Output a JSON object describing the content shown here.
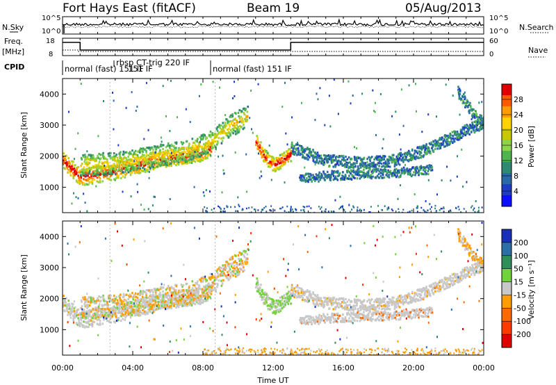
{
  "header": {
    "radar": "Fort Hays East (fitACF)",
    "beam": "Beam 19",
    "date": "05/Aug/2013"
  },
  "left_labels": {
    "nsky": "N.Sky",
    "freq": "Freq.",
    "freq_unit": "[MHz]",
    "cpid": "CPID"
  },
  "right_labels": {
    "nsearch": "N.Search",
    "nave": "Nave"
  },
  "noise_panel": {
    "left_ticks": [
      "10^5",
      "10^0"
    ],
    "right_ticks": [
      "10^5",
      "10^0"
    ]
  },
  "freq_panel": {
    "left_ticks": [
      "18",
      "8"
    ],
    "right_ticks": [
      "60",
      "0"
    ]
  },
  "cpid": {
    "segments": [
      {
        "label": "normal (fast) 151 IF",
        "start_hr": 0.0
      },
      {
        "label": "rbsp CT-trig 220 IF",
        "start_hr": 3.7
      },
      {
        "label": "151 IF",
        "start_hr": 3.7
      },
      {
        "label": "normal (fast) 151 IF",
        "start_hr": 8.7
      }
    ]
  },
  "power_colorbar": {
    "label": "Power [dB]",
    "ticks": [
      "28",
      "24",
      "20",
      "16",
      "12",
      "8",
      "4"
    ],
    "colors": [
      "#e10000",
      "#ff5a00",
      "#ff9c00",
      "#ffd200",
      "#c8c800",
      "#8fd24b",
      "#4fb34f",
      "#2e8a73",
      "#2a6aa6",
      "#1f3cc4",
      "#0d0dff"
    ]
  },
  "velocity_colorbar": {
    "label": "Velocity [m s⁻¹]",
    "ticks": [
      "200",
      "100",
      "50",
      "15",
      "-15",
      "-50",
      "-100",
      "-200"
    ],
    "colors": [
      "#1a2fb8",
      "#2c6fa6",
      "#2f8f5a",
      "#72d23b",
      "#c8c8c8",
      "#ff9d00",
      "#ff6a00",
      "#ff3a00",
      "#e00000"
    ]
  },
  "chart_data": [
    {
      "type": "heatmap",
      "title": "",
      "ylabel": "Slant Range [km]",
      "yticks": [
        "4000",
        "3000",
        "2000",
        "1000"
      ],
      "ylim": [
        180,
        4500
      ],
      "xlim": [
        0,
        24
      ],
      "xticks": [
        "00:00",
        "04:00",
        "08:00",
        "12:00",
        "16:00",
        "20:00",
        "00:00"
      ],
      "xlabel": "Time UT",
      "quantity": "Power [dB]",
      "features": [
        {
          "name": "ground scatter band",
          "x": [
            0,
            1,
            2,
            3,
            4,
            5,
            6,
            7,
            8,
            8.5
          ],
          "y": [
            1900,
            1350,
            1450,
            1550,
            1700,
            1850,
            1950,
            2050,
            2150,
            2350
          ]
        },
        {
          "name": "upper ionospheric echoes",
          "x": [
            1,
            3,
            5,
            7,
            8.5,
            9.5,
            10.5
          ],
          "y": [
            1750,
            1800,
            2000,
            2200,
            2500,
            3000,
            3300
          ]
        },
        {
          "name": "post-noon arc",
          "x": [
            11,
            11.5,
            12,
            12.5,
            13
          ],
          "y": [
            2500,
            2000,
            1750,
            1900,
            2100
          ]
        },
        {
          "name": "evening arc upper",
          "x": [
            13,
            15,
            17,
            19,
            21,
            23,
            24
          ],
          "y": [
            2300,
            1900,
            1800,
            1900,
            2300,
            2900,
            3100
          ]
        },
        {
          "name": "evening arc lower",
          "x": [
            13.5,
            15,
            17,
            19,
            21
          ],
          "y": [
            1300,
            1400,
            1450,
            1500,
            1600
          ]
        },
        {
          "name": "late arc",
          "x": [
            22.5,
            23,
            23.5,
            24
          ],
          "y": [
            4100,
            3700,
            3300,
            3100
          ]
        }
      ]
    },
    {
      "type": "heatmap",
      "title": "",
      "ylabel": "Slant Range [km]",
      "yticks": [
        "4000",
        "3000",
        "2000",
        "1000"
      ],
      "ylim": [
        180,
        4500
      ],
      "xlim": [
        0,
        24
      ],
      "xticks": [
        "00:00",
        "04:00",
        "08:00",
        "12:00",
        "16:00",
        "20:00",
        "00:00"
      ],
      "xlabel": "Time UT",
      "quantity": "Velocity [m s⁻¹]"
    }
  ]
}
